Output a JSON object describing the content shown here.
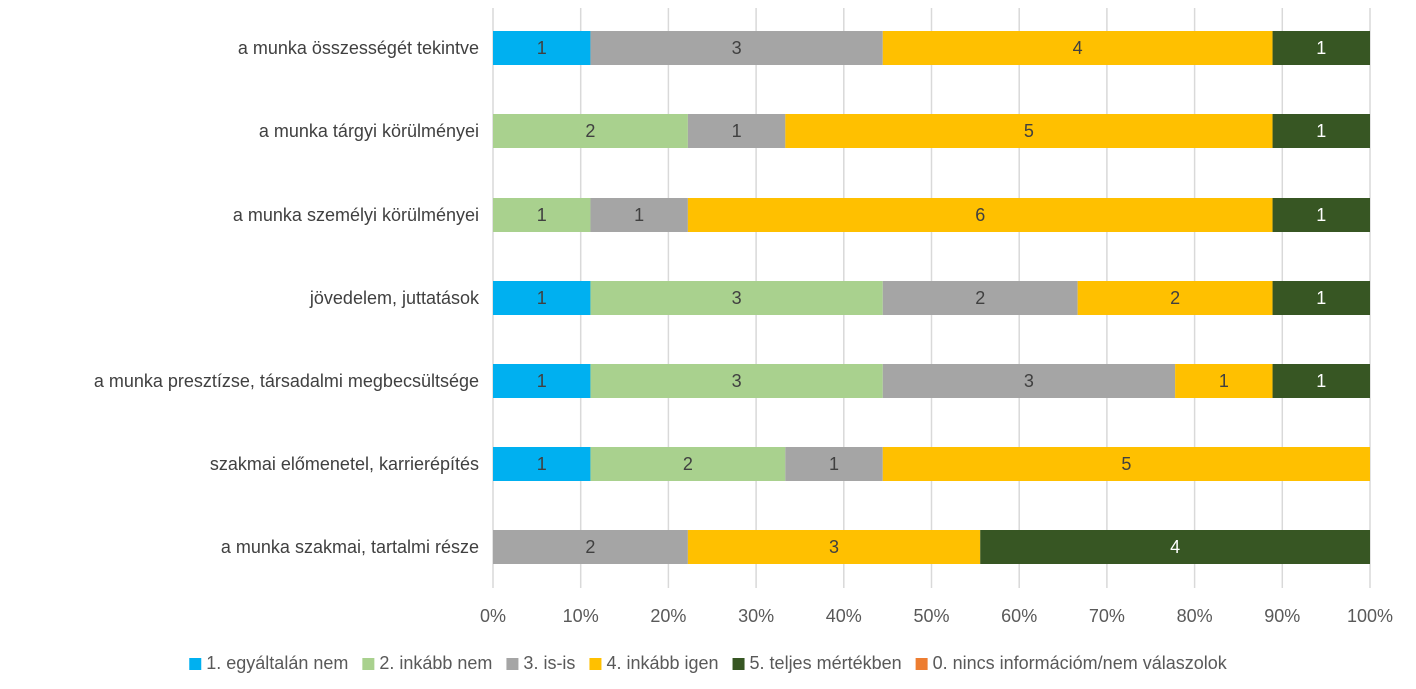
{
  "chart_data": {
    "type": "bar",
    "orientation": "horizontal",
    "stacked": "percent",
    "title": "",
    "xlabel": "",
    "ylabel": "",
    "xlim": [
      0,
      100
    ],
    "x_ticks": [
      "0%",
      "10%",
      "20%",
      "30%",
      "40%",
      "50%",
      "60%",
      "70%",
      "80%",
      "90%",
      "100%"
    ],
    "grid": "vertical",
    "legend_position": "bottom",
    "categories": [
      "a munka összességét tekintve",
      "a munka tárgyi körülményei",
      "a munka személyi körülményei",
      "jövedelem, juttatások",
      "a munka presztízse, társadalmi megbecsültsége",
      "szakmai előmenetel, karrierépítés",
      "a munka szakmai, tartalmi része"
    ],
    "series": [
      {
        "name": "1. egyáltalán nem",
        "color": "#00b0f0",
        "values": [
          1,
          0,
          0,
          1,
          1,
          1,
          0
        ]
      },
      {
        "name": "2. inkább nem",
        "color": "#a9d18e",
        "values": [
          0,
          2,
          1,
          3,
          3,
          2,
          0
        ]
      },
      {
        "name": "3. is-is",
        "color": "#a5a5a5",
        "values": [
          3,
          1,
          1,
          2,
          3,
          1,
          2
        ]
      },
      {
        "name": "4. inkább igen",
        "color": "#ffc000",
        "values": [
          4,
          5,
          6,
          2,
          1,
          5,
          3
        ]
      },
      {
        "name": "5. teljes mértékben",
        "color": "#375623",
        "values": [
          1,
          1,
          1,
          1,
          1,
          0,
          4
        ]
      },
      {
        "name": "0. nincs információm/nem válaszolok",
        "color": "#ed7d31",
        "values": [
          0,
          0,
          0,
          0,
          0,
          0,
          0
        ]
      }
    ]
  }
}
